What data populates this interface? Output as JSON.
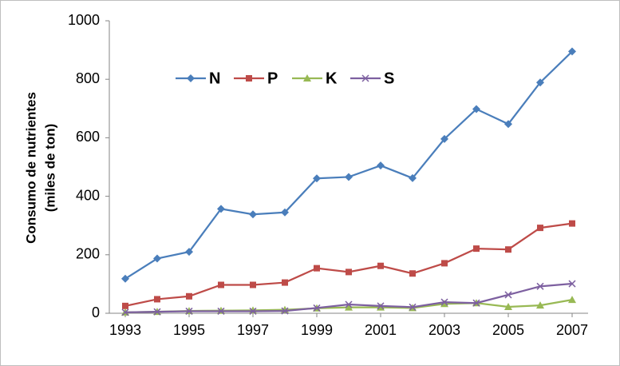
{
  "chart_data": {
    "type": "line",
    "y_label": [
      "Consumo de nutrientes",
      "(miles de ton)"
    ],
    "x": [
      1993,
      1994,
      1995,
      1996,
      1997,
      1998,
      1999,
      2000,
      2001,
      2002,
      2003,
      2004,
      2005,
      2006,
      2007
    ],
    "xlim": [
      1992.5,
      2007.5
    ],
    "xticks": [
      1993,
      1995,
      1997,
      1999,
      2001,
      2003,
      2005,
      2007
    ],
    "ylim": [
      0,
      1000
    ],
    "yticks": [
      0,
      200,
      400,
      600,
      800,
      1000
    ],
    "grid": false,
    "legend": "top-left",
    "series": [
      {
        "name": "N",
        "color": "#4a7ebb",
        "marker": "diamond",
        "values": [
          118,
          187,
          210,
          357,
          338,
          345,
          461,
          466,
          505,
          462,
          596,
          698,
          647,
          789,
          895
        ]
      },
      {
        "name": "P",
        "color": "#be4b48",
        "marker": "square",
        "values": [
          25,
          48,
          58,
          97,
          97,
          105,
          154,
          141,
          162,
          136,
          171,
          221,
          218,
          292,
          307
        ]
      },
      {
        "name": "K",
        "color": "#98b954",
        "marker": "triangle",
        "values": [
          3,
          5,
          8,
          9,
          10,
          12,
          17,
          20,
          20,
          18,
          32,
          35,
          22,
          27,
          46
        ]
      },
      {
        "name": "S",
        "color": "#7d60a0",
        "marker": "x",
        "values": [
          3,
          5,
          7,
          7,
          7,
          8,
          18,
          30,
          25,
          21,
          38,
          35,
          63,
          92,
          101
        ]
      }
    ]
  }
}
